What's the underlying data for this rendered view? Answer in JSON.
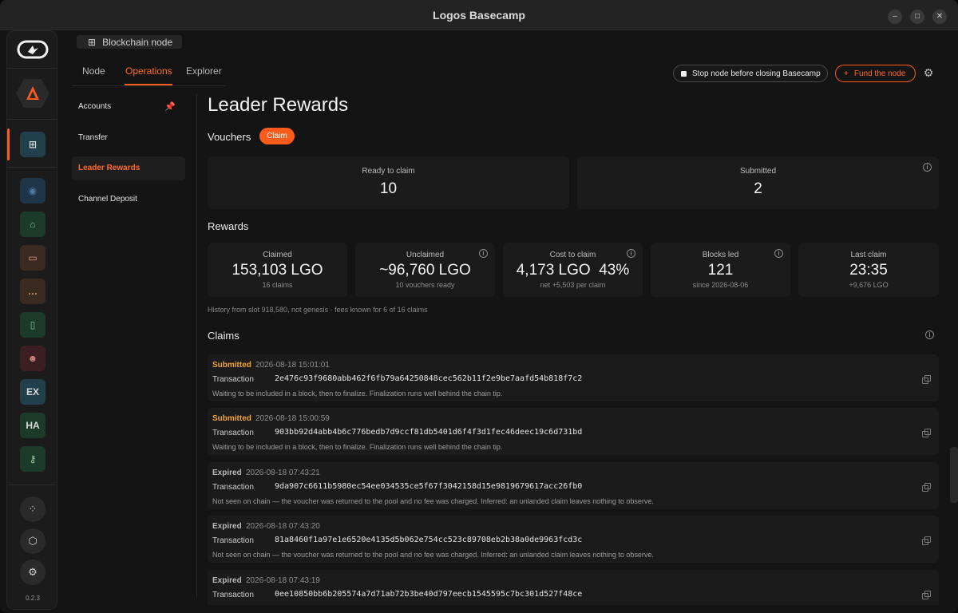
{
  "window": {
    "title": "Logos Basecamp"
  },
  "breadcrumb": {
    "label": "Blockchain node"
  },
  "tabs": [
    "Node",
    "Operations",
    "Explorer"
  ],
  "toolbar": {
    "stop_node_label": "Stop node before closing Basecamp",
    "fund_node_label": "Fund the node"
  },
  "rail": {
    "apps": [
      "",
      "",
      "",
      "",
      "",
      "",
      "EX",
      "HA",
      ""
    ],
    "version": "0.2.3"
  },
  "subnav": [
    "Accounts",
    "Transfer",
    "Leader Rewards",
    "Channel Deposit"
  ],
  "page": {
    "title": "Leader Rewards",
    "vouchers_title": "Vouchers",
    "claim_label": "Claim",
    "ready_label": "Ready to claim",
    "ready_value": "10",
    "submitted_label": "Submitted",
    "submitted_value": "2",
    "rewards_title": "Rewards",
    "stats": [
      {
        "label": "Claimed",
        "value": "153,103 LGO",
        "sub": "16 claims"
      },
      {
        "label": "Unclaimed",
        "value": "~96,760 LGO",
        "sub": "10 vouchers ready"
      },
      {
        "label": "Cost to claim",
        "value": "4,173 LGO  43%",
        "sub": "net +5,503 per claim"
      },
      {
        "label": "Blocks led",
        "value": "121",
        "sub": "since 2026-08-06"
      },
      {
        "label": "Last claim",
        "value": "23:35",
        "sub": "+9,676 LGO"
      }
    ],
    "history_note": "History from slot 918,580, not genesis · fees known for 6 of 16 claims",
    "claims_title": "Claims",
    "tx_label": "Transaction"
  },
  "claims": [
    {
      "status": "Submitted",
      "time": "2026-08-18 15:01:01",
      "hash": "2e476c93f9680abb462f6fb79a64250848cec562b11f2e9be7aafd54b818f7c2",
      "message": "Waiting to be included in a block, then to finalize. Finalization runs well behind the chain tip."
    },
    {
      "status": "Submitted",
      "time": "2026-08-18 15:00:59",
      "hash": "903bb92d4abb4b6c776bedb7d9ccf81db5401d6f4f3d1fec46deec19c6d731bd",
      "message": "Waiting to be included in a block, then to finalize. Finalization runs well behind the chain tip."
    },
    {
      "status": "Expired",
      "time": "2026-08-18 07:43:21",
      "hash": "9da907c6611b5980ec54ee034535ce5f67f3042158d15e9819679617acc26fb0",
      "message": "Not seen on chain — the voucher was returned to the pool and no fee was charged. Inferred: an unlanded claim leaves nothing to observe."
    },
    {
      "status": "Expired",
      "time": "2026-08-18 07:43:20",
      "hash": "81a8460f1a97e1e6520e4135d5b062e754cc523c89708eb2b38a0de9963fcd3c",
      "message": "Not seen on chain — the voucher was returned to the pool and no fee was charged. Inferred: an unlanded claim leaves nothing to observe."
    },
    {
      "status": "Expired",
      "time": "2026-08-18 07:43:19",
      "hash": "0ee10850bb6b205574a7d71ab72b3be40d797eecb1545595c7bc301d527f48ce",
      "message": ""
    }
  ],
  "colors": {
    "accent": "#ff5b1a",
    "submitted": "#f0a23a",
    "expired": "#b9b9b9"
  }
}
